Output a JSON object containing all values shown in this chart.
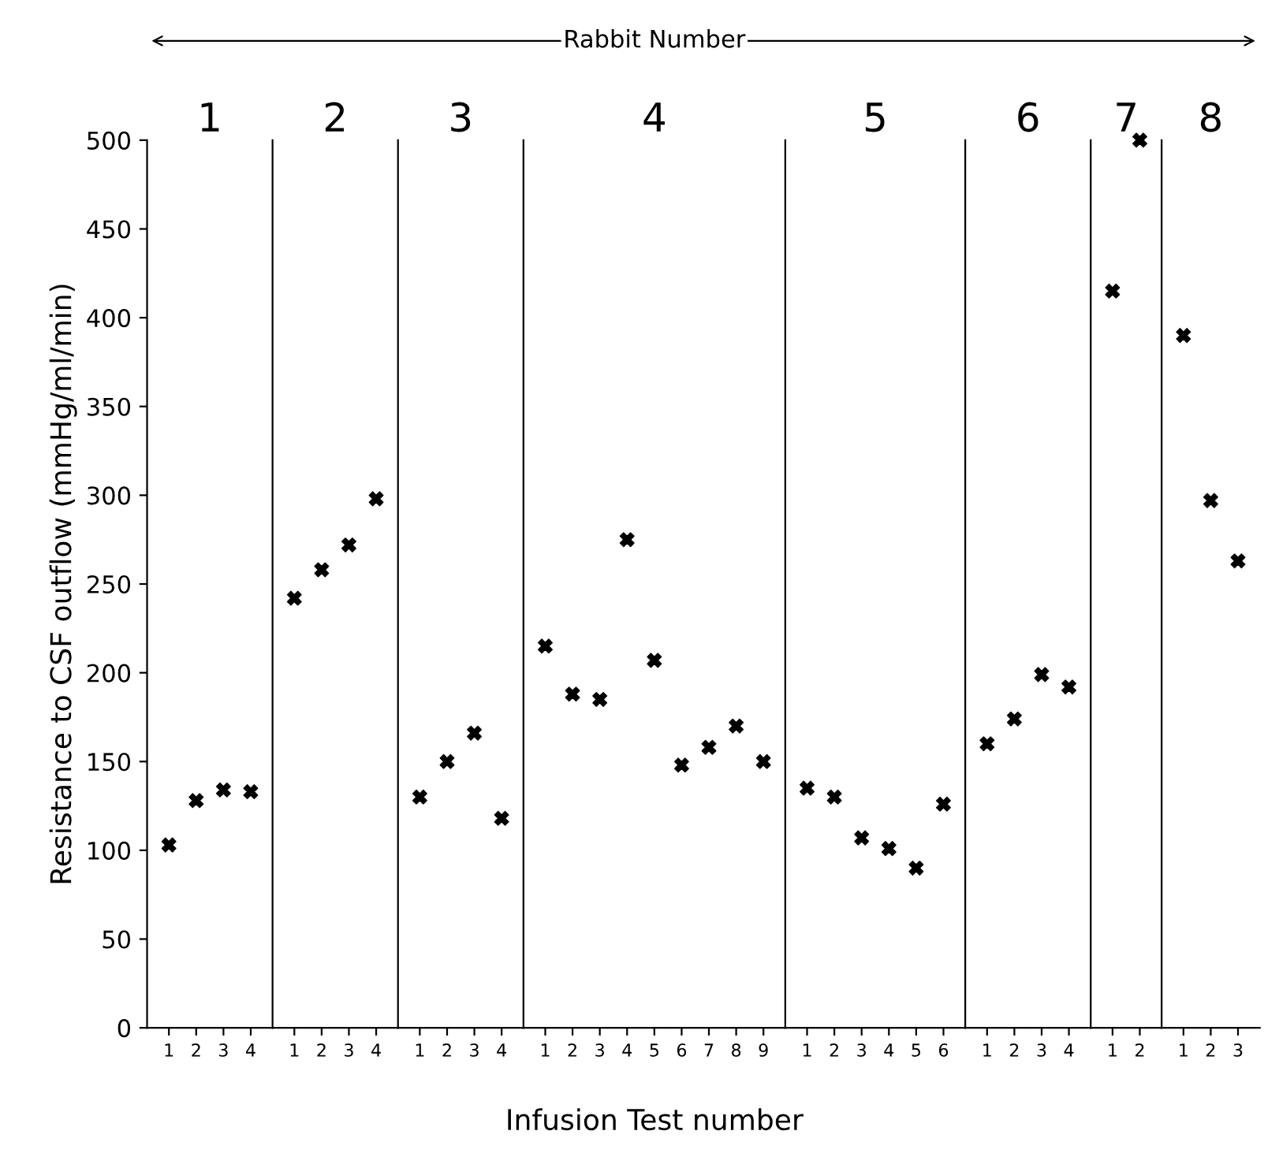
{
  "chart_data": [
    {
      "type": "scatter",
      "title": "1",
      "ylabel": "Resistance to CSF outflow (mmHg/ml/min)",
      "marker": "cross",
      "ylim": [
        0,
        500
      ],
      "yticks": [
        0,
        50,
        100,
        150,
        200,
        250,
        300,
        350,
        400,
        450,
        500
      ],
      "categories": [
        "1",
        "2",
        "3",
        "4"
      ],
      "series": [
        {
          "color": "#000000",
          "values": [
            103,
            128,
            134,
            133
          ]
        }
      ]
    },
    {
      "type": "scatter",
      "title": "2",
      "marker": "cross",
      "ylim": [
        0,
        500
      ],
      "tick_labels": "x",
      "categories": [
        "1",
        "2",
        "3",
        "4"
      ],
      "series": [
        {
          "color": "#000000",
          "values": [
            242,
            258,
            272,
            298
          ]
        }
      ]
    },
    {
      "type": "scatter",
      "title": "3",
      "marker": "cross",
      "ylim": [
        0,
        500
      ],
      "tick_labels": "x",
      "categories": [
        "1",
        "2",
        "3",
        "4"
      ],
      "series": [
        {
          "color": "#000000",
          "values": [
            130,
            150,
            166,
            118
          ]
        }
      ]
    },
    {
      "type": "scatter",
      "title": "4",
      "xlabel": "Infusion Test number",
      "annotations": [
        "Rabbit Number"
      ],
      "marker": "cross",
      "ylim": [
        0,
        500
      ],
      "tick_labels": "x",
      "categories": [
        "1",
        "2",
        "3",
        "4",
        "5",
        "6",
        "7",
        "8",
        "9"
      ],
      "series": [
        {
          "color": "#000000",
          "values": [
            215,
            188,
            185,
            275,
            207,
            148,
            158,
            170,
            150
          ]
        }
      ]
    },
    {
      "type": "scatter",
      "title": "5",
      "marker": "cross",
      "ylim": [
        0,
        500
      ],
      "tick_labels": "x",
      "categories": [
        "1",
        "2",
        "3",
        "4",
        "5",
        "6"
      ],
      "series": [
        {
          "color": "#000000",
          "values": [
            135,
            130,
            107,
            101,
            90,
            126
          ]
        }
      ]
    },
    {
      "type": "scatter",
      "title": "6",
      "marker": "cross",
      "ylim": [
        0,
        500
      ],
      "tick_labels": "x",
      "categories": [
        "1",
        "2",
        "3",
        "4"
      ],
      "series": [
        {
          "color": "#000000",
          "values": [
            160,
            174,
            199,
            192
          ]
        }
      ]
    },
    {
      "type": "scatter",
      "title": "7",
      "marker": "cross",
      "ylim": [
        0,
        500
      ],
      "tick_labels": "x",
      "categories": [
        "1",
        "2"
      ],
      "series": [
        {
          "color": "#000000",
          "values": [
            415,
            500
          ]
        }
      ]
    },
    {
      "type": "scatter",
      "title": "8",
      "marker": "cross",
      "ylim": [
        0,
        500
      ],
      "tick_labels": "x",
      "categories": [
        "1",
        "2",
        "3"
      ],
      "series": [
        {
          "color": "#000000",
          "values": [
            390,
            297,
            263
          ]
        }
      ]
    }
  ]
}
